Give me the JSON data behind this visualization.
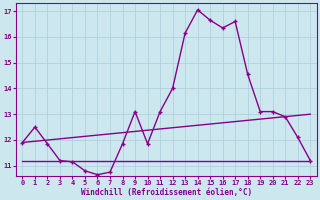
{
  "xlabel": "Windchill (Refroidissement éolien,°C)",
  "bg_color": "#cce8ee",
  "grid_color": "#aaccdd",
  "line_color": "#880088",
  "xlim": [
    -0.5,
    23.5
  ],
  "ylim": [
    10.6,
    17.3
  ],
  "yticks": [
    11,
    12,
    13,
    14,
    15,
    16,
    17
  ],
  "xticks": [
    0,
    1,
    2,
    3,
    4,
    5,
    6,
    7,
    8,
    9,
    10,
    11,
    12,
    13,
    14,
    15,
    16,
    17,
    18,
    19,
    20,
    21,
    22,
    23
  ],
  "curve_x": [
    0,
    1,
    2,
    3,
    4,
    5,
    6,
    7,
    8,
    9,
    10,
    11,
    12,
    13,
    14,
    15,
    16,
    17,
    18,
    19,
    20,
    21,
    22,
    23
  ],
  "curve_y": [
    11.9,
    12.5,
    11.85,
    11.2,
    11.15,
    10.8,
    10.65,
    10.75,
    11.85,
    13.1,
    11.85,
    13.1,
    14.0,
    16.15,
    17.05,
    16.65,
    16.35,
    16.6,
    14.55,
    13.1,
    13.1,
    12.9,
    12.1,
    11.2
  ],
  "hline_x": [
    0,
    23
  ],
  "hline_y": [
    11.2,
    11.2
  ],
  "diagline_x": [
    0,
    23
  ],
  "diagline_y": [
    11.9,
    13.0
  ]
}
